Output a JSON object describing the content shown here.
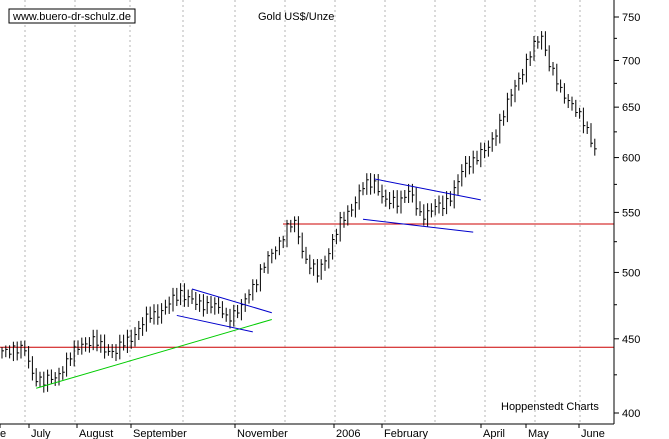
{
  "chart_data": {
    "type": "ohlc",
    "title": "Gold US$/Unze",
    "source_badge": "www.buero-dr-schulz.de",
    "credit": "Hoppenstedt Charts",
    "y_axis": {
      "scale": "log",
      "ylim": [
        400,
        760
      ],
      "ticks": [
        400,
        450,
        500,
        550,
        600,
        650,
        700,
        750
      ],
      "position": "right"
    },
    "x_axis": {
      "labels": [
        "e",
        "July",
        "August",
        "September",
        "November",
        "2006",
        "February",
        "April",
        "May",
        "June"
      ]
    },
    "grid": {
      "vertical": true,
      "style": "dotted"
    },
    "colors": {
      "price": "#000000",
      "support": "#cc0000",
      "trendline": "#00cc00",
      "channel": "#0000cc",
      "grid": "#b4b4b4"
    },
    "anchors": [
      [
        0,
        440
      ],
      [
        3,
        444
      ],
      [
        6,
        441
      ],
      [
        8,
        426
      ],
      [
        11,
        420
      ],
      [
        14,
        423
      ],
      [
        18,
        437
      ],
      [
        21,
        447
      ],
      [
        24,
        448
      ],
      [
        27,
        443
      ],
      [
        30,
        441
      ],
      [
        35,
        454
      ],
      [
        39,
        467
      ],
      [
        43,
        472
      ],
      [
        47,
        485
      ],
      [
        51,
        475
      ],
      [
        55,
        476
      ],
      [
        59,
        466
      ],
      [
        63,
        472
      ],
      [
        66,
        490
      ],
      [
        69,
        505
      ],
      [
        72,
        520
      ],
      [
        75,
        536
      ],
      [
        77,
        540
      ],
      [
        80,
        510
      ],
      [
        83,
        498
      ],
      [
        86,
        518
      ],
      [
        89,
        540
      ],
      [
        92,
        555
      ],
      [
        95,
        572
      ],
      [
        98,
        578
      ],
      [
        101,
        558
      ],
      [
        104,
        560
      ],
      [
        107,
        568
      ],
      [
        110,
        548
      ],
      [
        113,
        552
      ],
      [
        116,
        556
      ],
      [
        119,
        570
      ],
      [
        122,
        592
      ],
      [
        125,
        602
      ],
      [
        128,
        608
      ],
      [
        131,
        635
      ],
      [
        134,
        662
      ],
      [
        137,
        690
      ],
      [
        140,
        715
      ],
      [
        142,
        728
      ],
      [
        144,
        698
      ],
      [
        147,
        665
      ],
      [
        150,
        655
      ],
      [
        152,
        640
      ],
      [
        154,
        625
      ],
      [
        156,
        610
      ]
    ],
    "support_lines": [
      {
        "price": 444
      },
      {
        "price": 540
      }
    ],
    "trendlines": [
      {
        "color": "green",
        "p1": [
          9,
          416
        ],
        "p2": [
          71,
          464
        ]
      },
      {
        "color": "blue",
        "p1": [
          50,
          487
        ],
        "p2": [
          71,
          469
        ]
      },
      {
        "color": "blue",
        "p1": [
          46,
          467
        ],
        "p2": [
          66,
          455
        ]
      },
      {
        "color": "blue",
        "p1": [
          98,
          580
        ],
        "p2": [
          126,
          561
        ]
      },
      {
        "color": "blue",
        "p1": [
          95,
          544
        ],
        "p2": [
          124,
          533
        ]
      }
    ]
  }
}
